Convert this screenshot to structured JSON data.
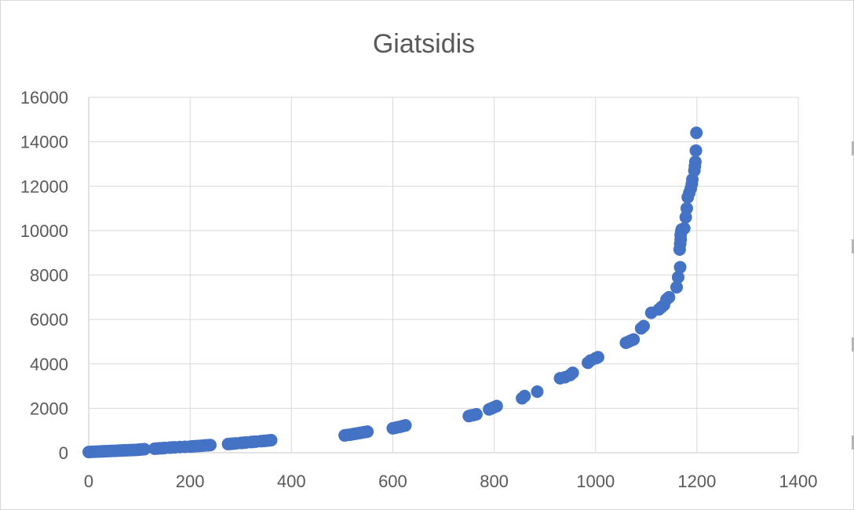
{
  "chart_data": {
    "type": "scatter",
    "title": "Giatsidis",
    "xlabel": "",
    "ylabel": "",
    "xlim": [
      0,
      1400
    ],
    "ylim": [
      0,
      16000
    ],
    "x_ticks": [
      0,
      200,
      400,
      600,
      800,
      1000,
      1200,
      1400
    ],
    "y_ticks": [
      0,
      2000,
      4000,
      6000,
      8000,
      10000,
      12000,
      14000,
      16000
    ],
    "grid": true,
    "legend": "none",
    "marker_color": "#4472C4",
    "series": [
      {
        "points": [
          [
            0,
            30
          ],
          [
            5,
            40
          ],
          [
            10,
            45
          ],
          [
            15,
            50
          ],
          [
            20,
            55
          ],
          [
            25,
            60
          ],
          [
            30,
            65
          ],
          [
            35,
            70
          ],
          [
            40,
            75
          ],
          [
            45,
            80
          ],
          [
            50,
            85
          ],
          [
            55,
            90
          ],
          [
            60,
            95
          ],
          [
            65,
            100
          ],
          [
            70,
            105
          ],
          [
            75,
            110
          ],
          [
            80,
            115
          ],
          [
            85,
            120
          ],
          [
            90,
            125
          ],
          [
            95,
            130
          ],
          [
            100,
            140
          ],
          [
            105,
            150
          ],
          [
            110,
            160
          ],
          [
            130,
            180
          ],
          [
            135,
            190
          ],
          [
            140,
            200
          ],
          [
            145,
            205
          ],
          [
            150,
            215
          ],
          [
            160,
            230
          ],
          [
            165,
            240
          ],
          [
            170,
            245
          ],
          [
            180,
            255
          ],
          [
            190,
            265
          ],
          [
            200,
            275
          ],
          [
            205,
            285
          ],
          [
            210,
            295
          ],
          [
            215,
            300
          ],
          [
            220,
            310
          ],
          [
            225,
            320
          ],
          [
            230,
            330
          ],
          [
            235,
            335
          ],
          [
            240,
            345
          ],
          [
            275,
            390
          ],
          [
            280,
            400
          ],
          [
            285,
            410
          ],
          [
            290,
            420
          ],
          [
            300,
            440
          ],
          [
            305,
            450
          ],
          [
            310,
            460
          ],
          [
            320,
            480
          ],
          [
            325,
            490
          ],
          [
            330,
            500
          ],
          [
            340,
            520
          ],
          [
            345,
            530
          ],
          [
            350,
            540
          ],
          [
            355,
            550
          ],
          [
            360,
            565
          ],
          [
            505,
            780
          ],
          [
            510,
            800
          ],
          [
            515,
            810
          ],
          [
            520,
            830
          ],
          [
            525,
            850
          ],
          [
            530,
            870
          ],
          [
            535,
            890
          ],
          [
            540,
            910
          ],
          [
            545,
            930
          ],
          [
            550,
            950
          ],
          [
            600,
            1100
          ],
          [
            605,
            1120
          ],
          [
            610,
            1150
          ],
          [
            615,
            1170
          ],
          [
            620,
            1200
          ],
          [
            625,
            1230
          ],
          [
            750,
            1650
          ],
          [
            755,
            1680
          ],
          [
            760,
            1700
          ],
          [
            765,
            1730
          ],
          [
            790,
            1950
          ],
          [
            795,
            2000
          ],
          [
            800,
            2050
          ],
          [
            805,
            2100
          ],
          [
            855,
            2450
          ],
          [
            860,
            2550
          ],
          [
            885,
            2750
          ],
          [
            930,
            3350
          ],
          [
            940,
            3400
          ],
          [
            950,
            3500
          ],
          [
            955,
            3600
          ],
          [
            985,
            4050
          ],
          [
            990,
            4150
          ],
          [
            1000,
            4250
          ],
          [
            1005,
            4300
          ],
          [
            1060,
            4950
          ],
          [
            1065,
            5000
          ],
          [
            1070,
            5050
          ],
          [
            1075,
            5100
          ],
          [
            1090,
            5600
          ],
          [
            1095,
            5700
          ],
          [
            1110,
            6300
          ],
          [
            1125,
            6450
          ],
          [
            1130,
            6550
          ],
          [
            1135,
            6650
          ],
          [
            1140,
            6900
          ],
          [
            1145,
            7000
          ],
          [
            1160,
            7450
          ],
          [
            1163,
            7900
          ],
          [
            1167,
            8350
          ],
          [
            1166,
            9150
          ],
          [
            1167,
            9400
          ],
          [
            1168,
            9600
          ],
          [
            1168,
            9800
          ],
          [
            1169,
            9950
          ],
          [
            1170,
            10050
          ],
          [
            1175,
            10100
          ],
          [
            1178,
            10600
          ],
          [
            1180,
            11000
          ],
          [
            1182,
            11500
          ],
          [
            1185,
            11700
          ],
          [
            1188,
            11900
          ],
          [
            1190,
            12100
          ],
          [
            1191,
            12300
          ],
          [
            1195,
            12700
          ],
          [
            1196,
            12900
          ],
          [
            1197,
            13100
          ],
          [
            1198,
            13600
          ],
          [
            1199,
            14400
          ]
        ]
      }
    ]
  }
}
